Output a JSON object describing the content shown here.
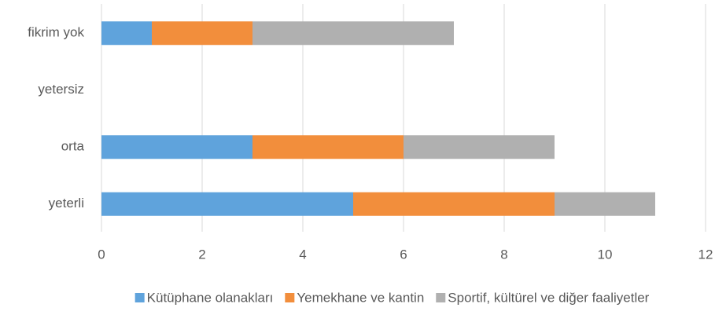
{
  "chart_data": {
    "type": "stacked_barh",
    "categories": [
      "fikrim yok",
      "yetersiz",
      "orta",
      "yeterli"
    ],
    "series": [
      {
        "name": "Kütüphane olanakları",
        "color": "#5fa3dc",
        "values": [
          1,
          0,
          3,
          5
        ]
      },
      {
        "name": "Yemekhane ve kantin",
        "color": "#f28e3c",
        "values": [
          2,
          0,
          3,
          4
        ]
      },
      {
        "name": "Sportif, kültürel ve diğer faaliyetler",
        "color": "#b0b0b0",
        "values": [
          4,
          0,
          3,
          2
        ]
      }
    ],
    "xlim": [
      0,
      12
    ],
    "xticks": [
      0,
      2,
      4,
      6,
      8,
      10,
      12
    ],
    "grid": true,
    "legend": "bottom"
  }
}
